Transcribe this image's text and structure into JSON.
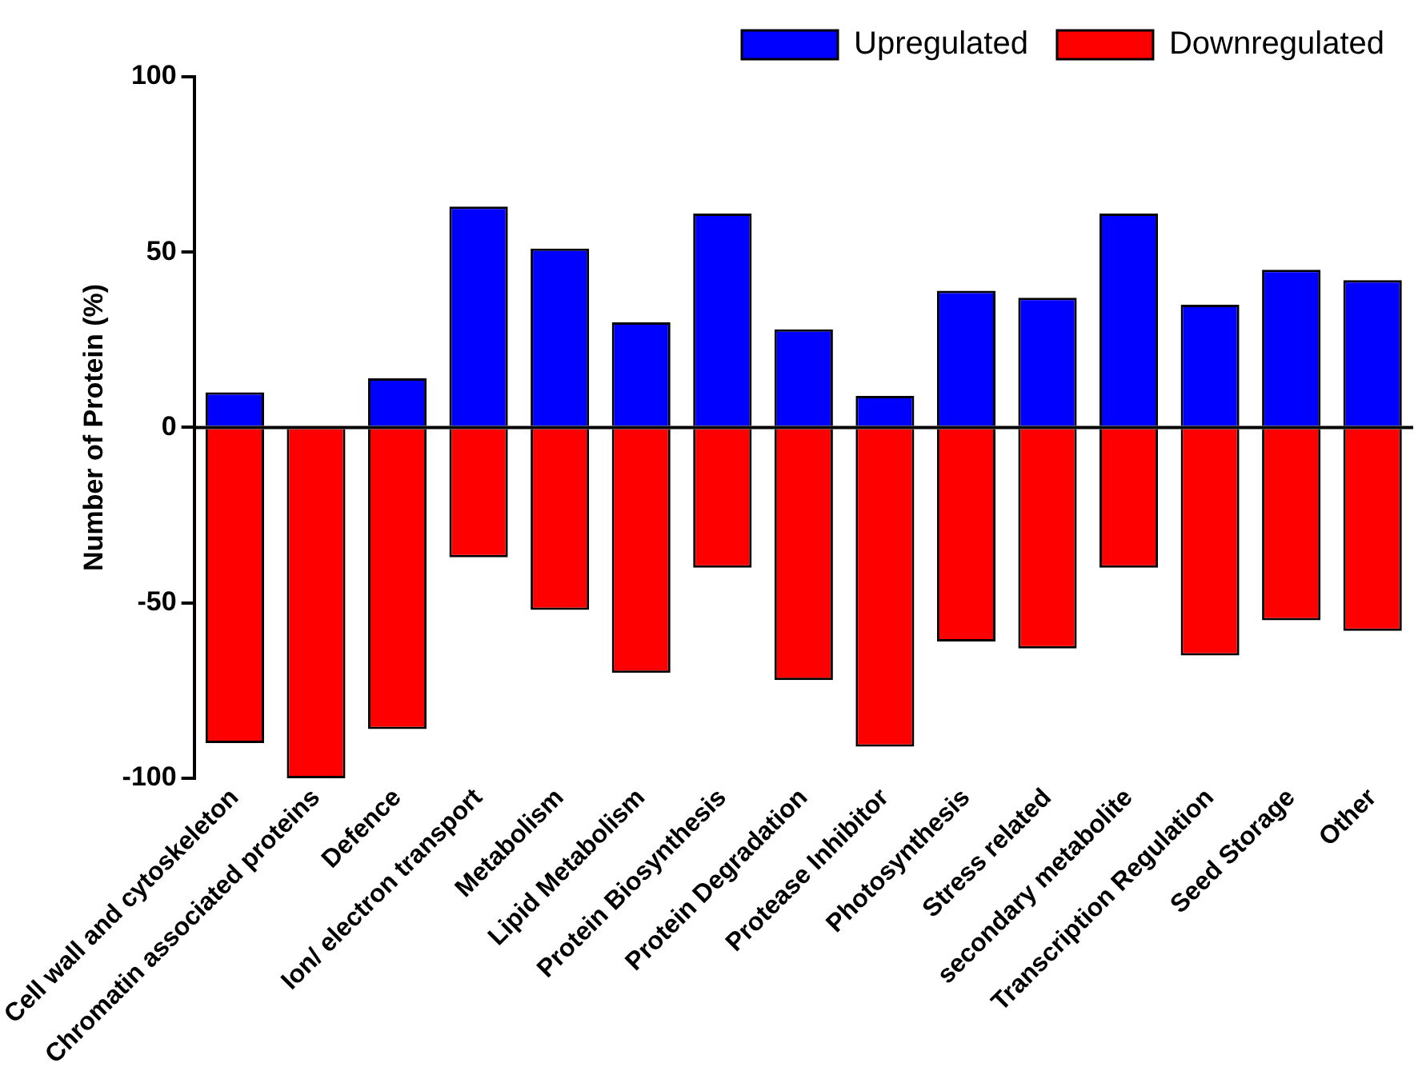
{
  "chart_data": {
    "type": "bar",
    "stacked": true,
    "ylabel": "Number of Protein (%)",
    "categories": [
      "Cell wall and cytoskeleton",
      "Chromatin associated proteins",
      "Defence",
      "Ion/ electron transport",
      "Metabolism",
      "Lipid Metabolism",
      "Protein Biosynthesis",
      "Protein Degradation",
      "Protease Inhibitor",
      "Photosynthesis",
      "Stress related",
      "secondary metabolite",
      "Transcription Regulation",
      "Seed Storage",
      "Other"
    ],
    "series": [
      {
        "name": "Upregulated",
        "color": "#0000ff",
        "values": [
          10,
          0,
          14,
          63,
          51,
          30,
          61,
          28,
          9,
          39,
          37,
          61,
          35,
          45,
          42
        ]
      },
      {
        "name": "Downregulated",
        "color": "#ff0000",
        "values": [
          -90,
          -100,
          -86,
          -37,
          -52,
          -70,
          -40,
          -72,
          -91,
          -61,
          -63,
          -40,
          -65,
          -55,
          -58
        ]
      }
    ],
    "ylim": [
      -100,
      100
    ],
    "yticks": [
      -100,
      -50,
      0,
      50,
      100
    ],
    "grid": false,
    "ref_lines": [
      {
        "axis": "y",
        "value": 0,
        "color": "#000000"
      }
    ],
    "legend": "top right"
  }
}
